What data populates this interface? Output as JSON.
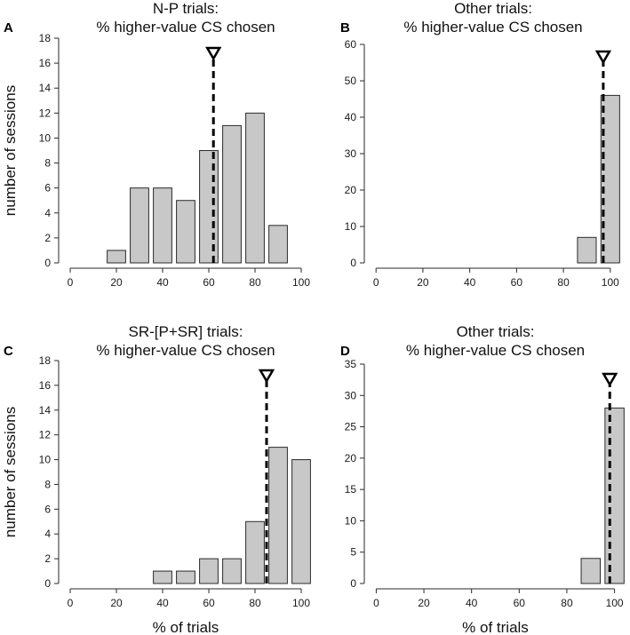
{
  "figure": {
    "shared_xlabel": "% of trials",
    "shared_ylabel": "number of sessions"
  },
  "chart_data": [
    {
      "panel": "A",
      "type": "bar",
      "title_line1": "N-P trials:",
      "title_line2": "% higher-value CS chosen",
      "xlabel": "",
      "ylabel": "number of sessions",
      "x": [
        20,
        30,
        40,
        50,
        60,
        70,
        80,
        90
      ],
      "values": [
        1,
        6,
        6,
        5,
        9,
        11,
        12,
        3
      ],
      "bar_width": 8,
      "xlim": [
        -5,
        105
      ],
      "ylim": [
        0,
        18
      ],
      "xticks": [
        0,
        20,
        40,
        60,
        80,
        100
      ],
      "yticks": [
        0,
        2,
        4,
        6,
        8,
        10,
        12,
        14,
        16,
        18
      ],
      "median": 62
    },
    {
      "panel": "B",
      "type": "bar",
      "title_line1": "Other trials:",
      "title_line2": "% higher-value CS chosen",
      "xlabel": "",
      "ylabel": "",
      "x": [
        90,
        100
      ],
      "values": [
        7,
        46
      ],
      "bar_width": 8,
      "xlim": [
        -5,
        105
      ],
      "ylim": [
        0,
        60
      ],
      "xticks": [
        0,
        20,
        40,
        60,
        80,
        100
      ],
      "yticks": [
        0,
        10,
        20,
        30,
        40,
        50,
        60
      ],
      "median": 97
    },
    {
      "panel": "C",
      "type": "bar",
      "title_line1": "SR-[P+SR] trials:",
      "title_line2": "% higher-value CS chosen",
      "xlabel": "% of trials",
      "ylabel": "number of sessions",
      "x": [
        40,
        50,
        60,
        70,
        80,
        90,
        100
      ],
      "values": [
        1,
        1,
        2,
        2,
        5,
        11,
        10
      ],
      "bar_width": 8,
      "xlim": [
        -5,
        105
      ],
      "ylim": [
        0,
        18
      ],
      "xticks": [
        0,
        20,
        40,
        60,
        80,
        100
      ],
      "yticks": [
        0,
        2,
        4,
        6,
        8,
        10,
        12,
        14,
        16,
        18
      ],
      "median": 85
    },
    {
      "panel": "D",
      "type": "bar",
      "title_line1": "Other trials:",
      "title_line2": "% higher-value CS chosen",
      "xlabel": "% of trials",
      "ylabel": "",
      "x": [
        90,
        100
      ],
      "values": [
        4,
        28
      ],
      "bar_width": 8,
      "xlim": [
        -5,
        105
      ],
      "ylim": [
        0,
        35
      ],
      "xticks": [
        0,
        20,
        40,
        60,
        80,
        100
      ],
      "yticks": [
        0,
        5,
        10,
        15,
        20,
        25,
        30,
        35
      ],
      "median": 98
    }
  ]
}
